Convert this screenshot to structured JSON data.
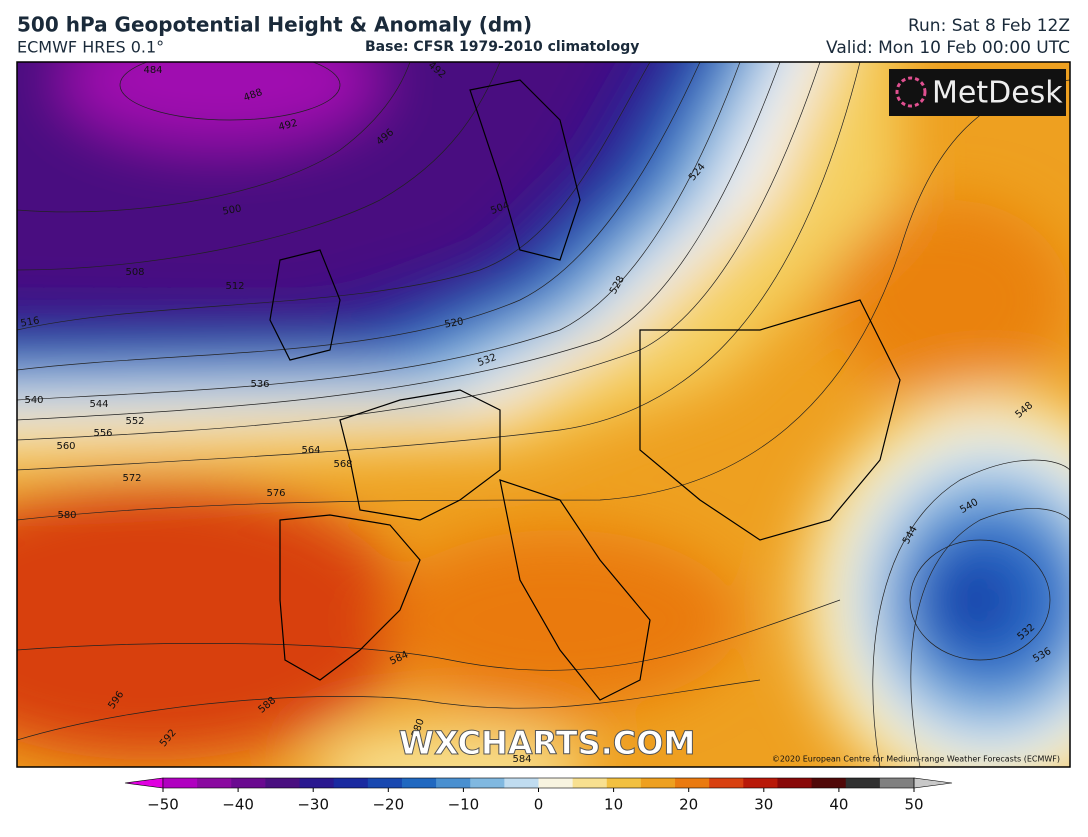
{
  "header": {
    "title": "500 hPa Geopotential Height & Anomaly (dm)",
    "model": "ECMWF HRES 0.1°",
    "base": "Base: CFSR 1979-2010 climatology",
    "run": "Run: Sat 8 Feb 12Z",
    "valid": "Valid: Mon 10 Feb 00:00 UTC"
  },
  "map": {
    "contour_labels": [
      484,
      488,
      492,
      492,
      496,
      500,
      504,
      508,
      512,
      516,
      520,
      524,
      528,
      532,
      536,
      540,
      544,
      552,
      556,
      560,
      564,
      568,
      572,
      576,
      580,
      584,
      588,
      592,
      596,
      548,
      540,
      544,
      532,
      536,
      580,
      584
    ],
    "watermark": "WXCHARTS.COM",
    "copyright": "©2020 European Centre for Medium-range Weather Forecasts (ECMWF)",
    "logo": "MetDesk"
  },
  "colorbar": {
    "range": [
      -50,
      50
    ],
    "ticks": [
      {
        "value": -50,
        "label": "−50"
      },
      {
        "value": -40,
        "label": "−40"
      },
      {
        "value": -30,
        "label": "−30"
      },
      {
        "value": -20,
        "label": "−20"
      },
      {
        "value": -10,
        "label": "−10"
      },
      0,
      10,
      20,
      30,
      40,
      50
    ],
    "colors": [
      "#e000e0",
      "#b000c0",
      "#8a0aa0",
      "#6a0a90",
      "#4a1080",
      "#2a1890",
      "#1a2aa0",
      "#1848b0",
      "#2068c0",
      "#4a90d0",
      "#80b8e0",
      "#c0dcf0",
      "#f8f4e0",
      "#f8e090",
      "#f2c040",
      "#eea020",
      "#ea7a10",
      "#d84010",
      "#b81808",
      "#880808",
      "#500808",
      "#303030",
      "#808080",
      "#c8c8c8"
    ]
  }
}
